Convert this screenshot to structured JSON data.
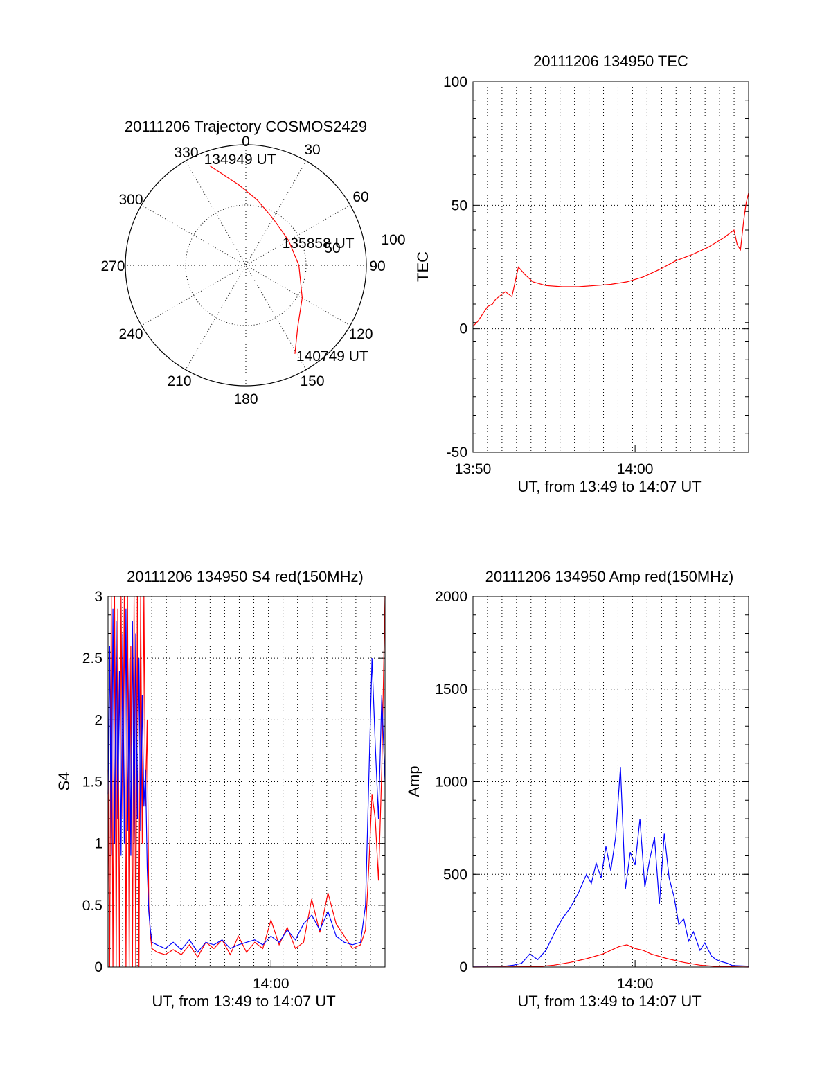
{
  "chart_data": [
    {
      "type": "polar",
      "title": "20111206 Trajectory COSMOS2429",
      "angle_labels": [
        "0",
        "30",
        "60",
        "90",
        "120",
        "150",
        "180",
        "210",
        "240",
        "270",
        "300",
        "330"
      ],
      "radius_labels": [
        "50",
        "100"
      ],
      "rlim": [
        0,
        100
      ],
      "grid": true,
      "series": [
        {
          "color": "#ff0000",
          "points": [
            [
              -20,
              88
            ],
            [
              -5,
              67
            ],
            [
              10,
              55
            ],
            [
              30,
              45
            ],
            [
              60,
              41
            ],
            [
              90,
              44
            ],
            [
              120,
              54
            ],
            [
              140,
              67
            ],
            [
              151,
              84
            ]
          ]
        }
      ],
      "annotations": [
        {
          "text": "134949 UT",
          "azimuth": -20,
          "radius": 88
        },
        {
          "text": "135858 UT",
          "azimuth": 70,
          "radius": 42
        },
        {
          "text": "140749 UT",
          "azimuth": 151,
          "radius": 84
        }
      ]
    },
    {
      "type": "line",
      "title": "20111206 134950 TEC",
      "xlabel": "UT, from 13:49 to 14:07 UT",
      "ylabel": "TEC",
      "xlim": [
        0,
        17
      ],
      "ylim": [
        -50,
        100
      ],
      "xticks": [
        {
          "x": 0,
          "label": "13:50"
        },
        {
          "x": 10,
          "label": "14:00"
        }
      ],
      "yticks": [
        -50,
        0,
        50,
        100
      ],
      "grid": true,
      "series": [
        {
          "color": "#ff0000",
          "x": [
            0.0,
            0.3,
            0.6,
            0.9,
            1.2,
            1.4,
            1.6,
            1.8,
            2.0,
            2.2,
            2.4,
            2.6,
            2.8,
            3.2,
            3.7,
            4.5,
            5.5,
            6.5,
            7.5,
            8.5,
            9.5,
            10.5,
            11.5,
            12.5,
            13.5,
            14.5,
            15.5,
            16.1,
            16.3,
            16.5,
            16.7,
            16.85,
            17.0
          ],
          "y": [
            1,
            3,
            6,
            9,
            10,
            12,
            13,
            14,
            15,
            14,
            13,
            19,
            25,
            22,
            19,
            17.5,
            17,
            17,
            17.5,
            18,
            19,
            21,
            24,
            27.5,
            30,
            33,
            37,
            40,
            34,
            32,
            44,
            51,
            55
          ]
        }
      ]
    },
    {
      "type": "line",
      "title": "20111206 134950 S4 red(150MHz)",
      "xlabel": "UT, from 13:49 to 14:07 UT",
      "ylabel": "S4",
      "xlim": [
        0,
        17
      ],
      "ylim": [
        0,
        3
      ],
      "xticks": [
        {
          "x": 10,
          "label": "14:00"
        }
      ],
      "yticks": [
        "0",
        "0.5",
        "1",
        "1.5",
        "2",
        "2.5",
        "3"
      ],
      "grid": true,
      "series": [
        {
          "color": "#ff0000",
          "x": [
            0.0,
            0.1,
            0.2,
            0.3,
            0.4,
            0.5,
            0.6,
            0.7,
            0.8,
            0.9,
            1.0,
            1.1,
            1.2,
            1.3,
            1.4,
            1.5,
            1.6,
            1.7,
            1.8,
            1.9,
            2.0,
            2.1,
            2.2,
            2.3,
            2.4,
            2.5,
            2.6,
            2.7,
            3.0,
            3.5,
            4.0,
            4.5,
            5.0,
            5.5,
            6.0,
            6.5,
            7.0,
            7.5,
            8.0,
            8.5,
            9.0,
            9.5,
            10.0,
            10.5,
            11.0,
            11.5,
            12.0,
            12.5,
            13.0,
            13.5,
            14.0,
            14.5,
            15.0,
            15.5,
            15.8,
            16.0,
            16.2,
            16.4,
            16.6,
            16.8,
            17.0
          ],
          "y": [
            1.6,
            0.0,
            3.0,
            0.0,
            3.0,
            0.0,
            2.9,
            0.0,
            3.0,
            1.2,
            3.0,
            0.0,
            3.0,
            0.0,
            2.6,
            0.0,
            3.0,
            0.0,
            3.0,
            0.0,
            3.0,
            1.0,
            3.0,
            1.3,
            2.0,
            0.5,
            0.25,
            0.15,
            0.12,
            0.1,
            0.14,
            0.1,
            0.18,
            0.08,
            0.2,
            0.15,
            0.22,
            0.1,
            0.25,
            0.12,
            0.2,
            0.15,
            0.38,
            0.18,
            0.32,
            0.15,
            0.2,
            0.55,
            0.28,
            0.6,
            0.35,
            0.25,
            0.15,
            0.18,
            0.3,
            0.8,
            1.4,
            1.2,
            0.7,
            1.6,
            3.0
          ]
        },
        {
          "color": "#0000ff",
          "x": [
            0.0,
            0.1,
            0.2,
            0.3,
            0.4,
            0.5,
            0.6,
            0.7,
            0.8,
            0.9,
            1.0,
            1.1,
            1.2,
            1.3,
            1.4,
            1.5,
            1.6,
            1.7,
            1.8,
            1.9,
            2.0,
            2.1,
            2.2,
            2.3,
            2.4,
            2.5,
            2.6,
            2.7,
            3.0,
            3.5,
            4.0,
            4.5,
            5.0,
            5.5,
            6.0,
            6.5,
            7.0,
            7.5,
            8.0,
            8.5,
            9.0,
            9.5,
            10.0,
            10.5,
            11.0,
            11.5,
            12.0,
            12.5,
            13.0,
            13.5,
            14.0,
            14.5,
            15.0,
            15.5,
            15.8,
            16.0,
            16.2,
            16.4,
            16.6,
            16.8,
            17.0
          ],
          "y": [
            1.4,
            2.6,
            0.9,
            2.9,
            1.0,
            2.8,
            1.2,
            2.4,
            0.9,
            2.7,
            1.0,
            2.9,
            1.1,
            2.5,
            0.9,
            2.8,
            1.0,
            2.7,
            1.2,
            2.5,
            1.1,
            2.2,
            1.3,
            1.6,
            0.8,
            0.45,
            0.3,
            0.2,
            0.18,
            0.15,
            0.2,
            0.14,
            0.22,
            0.12,
            0.2,
            0.18,
            0.22,
            0.15,
            0.18,
            0.2,
            0.22,
            0.18,
            0.25,
            0.2,
            0.3,
            0.22,
            0.35,
            0.42,
            0.3,
            0.45,
            0.25,
            0.2,
            0.18,
            0.2,
            0.5,
            1.5,
            2.5,
            1.8,
            1.2,
            2.2,
            1.5
          ]
        }
      ]
    },
    {
      "type": "line",
      "title": "20111206 134950 Amp red(150MHz)",
      "xlabel": "UT, from 13:49 to 14:07 UT",
      "ylabel": "Amp",
      "xlim": [
        0,
        17
      ],
      "ylim": [
        0,
        2000
      ],
      "xticks": [
        {
          "x": 10,
          "label": "14:00"
        }
      ],
      "yticks": [
        0,
        500,
        1000,
        1500,
        2000
      ],
      "grid": true,
      "series": [
        {
          "color": "#0000ff",
          "x": [
            0.0,
            2.0,
            2.5,
            3.0,
            3.5,
            4.0,
            4.5,
            5.0,
            5.5,
            6.0,
            6.5,
            7.0,
            7.3,
            7.6,
            7.9,
            8.2,
            8.5,
            8.8,
            9.1,
            9.4,
            9.7,
            10.0,
            10.3,
            10.6,
            10.9,
            11.2,
            11.5,
            11.8,
            12.1,
            12.4,
            12.7,
            13.0,
            13.3,
            13.6,
            14.0,
            14.3,
            14.7,
            15.0,
            15.3,
            15.7,
            16.0,
            17.0
          ],
          "y": [
            5,
            5,
            10,
            20,
            70,
            40,
            90,
            180,
            260,
            320,
            400,
            500,
            450,
            560,
            480,
            650,
            520,
            700,
            1080,
            420,
            620,
            550,
            800,
            430,
            580,
            700,
            340,
            720,
            480,
            380,
            230,
            260,
            140,
            190,
            90,
            130,
            60,
            40,
            30,
            20,
            8,
            5
          ]
        },
        {
          "color": "#ff0000",
          "x": [
            0.0,
            4.0,
            5.0,
            6.0,
            7.0,
            8.0,
            8.5,
            9.0,
            9.5,
            10.0,
            10.5,
            11.0,
            12.0,
            13.0,
            14.0,
            15.0,
            17.0
          ],
          "y": [
            0,
            2,
            10,
            25,
            45,
            70,
            90,
            110,
            120,
            100,
            90,
            70,
            45,
            25,
            10,
            3,
            0
          ]
        }
      ]
    }
  ]
}
